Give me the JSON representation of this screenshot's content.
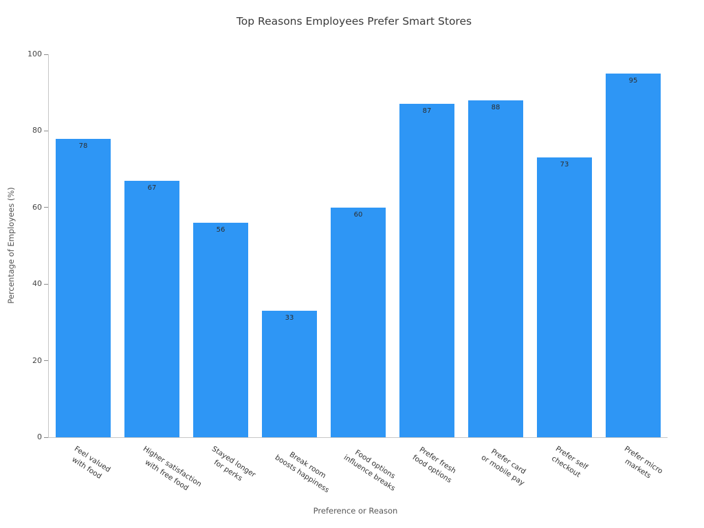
{
  "chart_data": {
    "type": "bar",
    "title": "Top Reasons Employees Prefer Smart Stores",
    "xlabel": "Preference or Reason",
    "ylabel": "Percentage of Employees (%)",
    "categories": [
      "Feel valued\nwith food",
      "Higher satisfaction\nwith free food",
      "Stayed longer\nfor perks",
      "Break room\nboosts happiness",
      "Food options\ninfluence breaks",
      "Prefer fresh\nfood options",
      "Prefer card\nor mobile pay",
      "Prefer self\ncheckout",
      "Prefer micro\nmarkets"
    ],
    "values": [
      78,
      67,
      56,
      33,
      60,
      87,
      88,
      73,
      95
    ],
    "ylim": [
      0,
      100
    ],
    "yticks": [
      0,
      20,
      40,
      60,
      80,
      100
    ],
    "bar_color": "#2E96F5",
    "grid": false,
    "legend_position": "none",
    "value_labels_shown": true
  }
}
